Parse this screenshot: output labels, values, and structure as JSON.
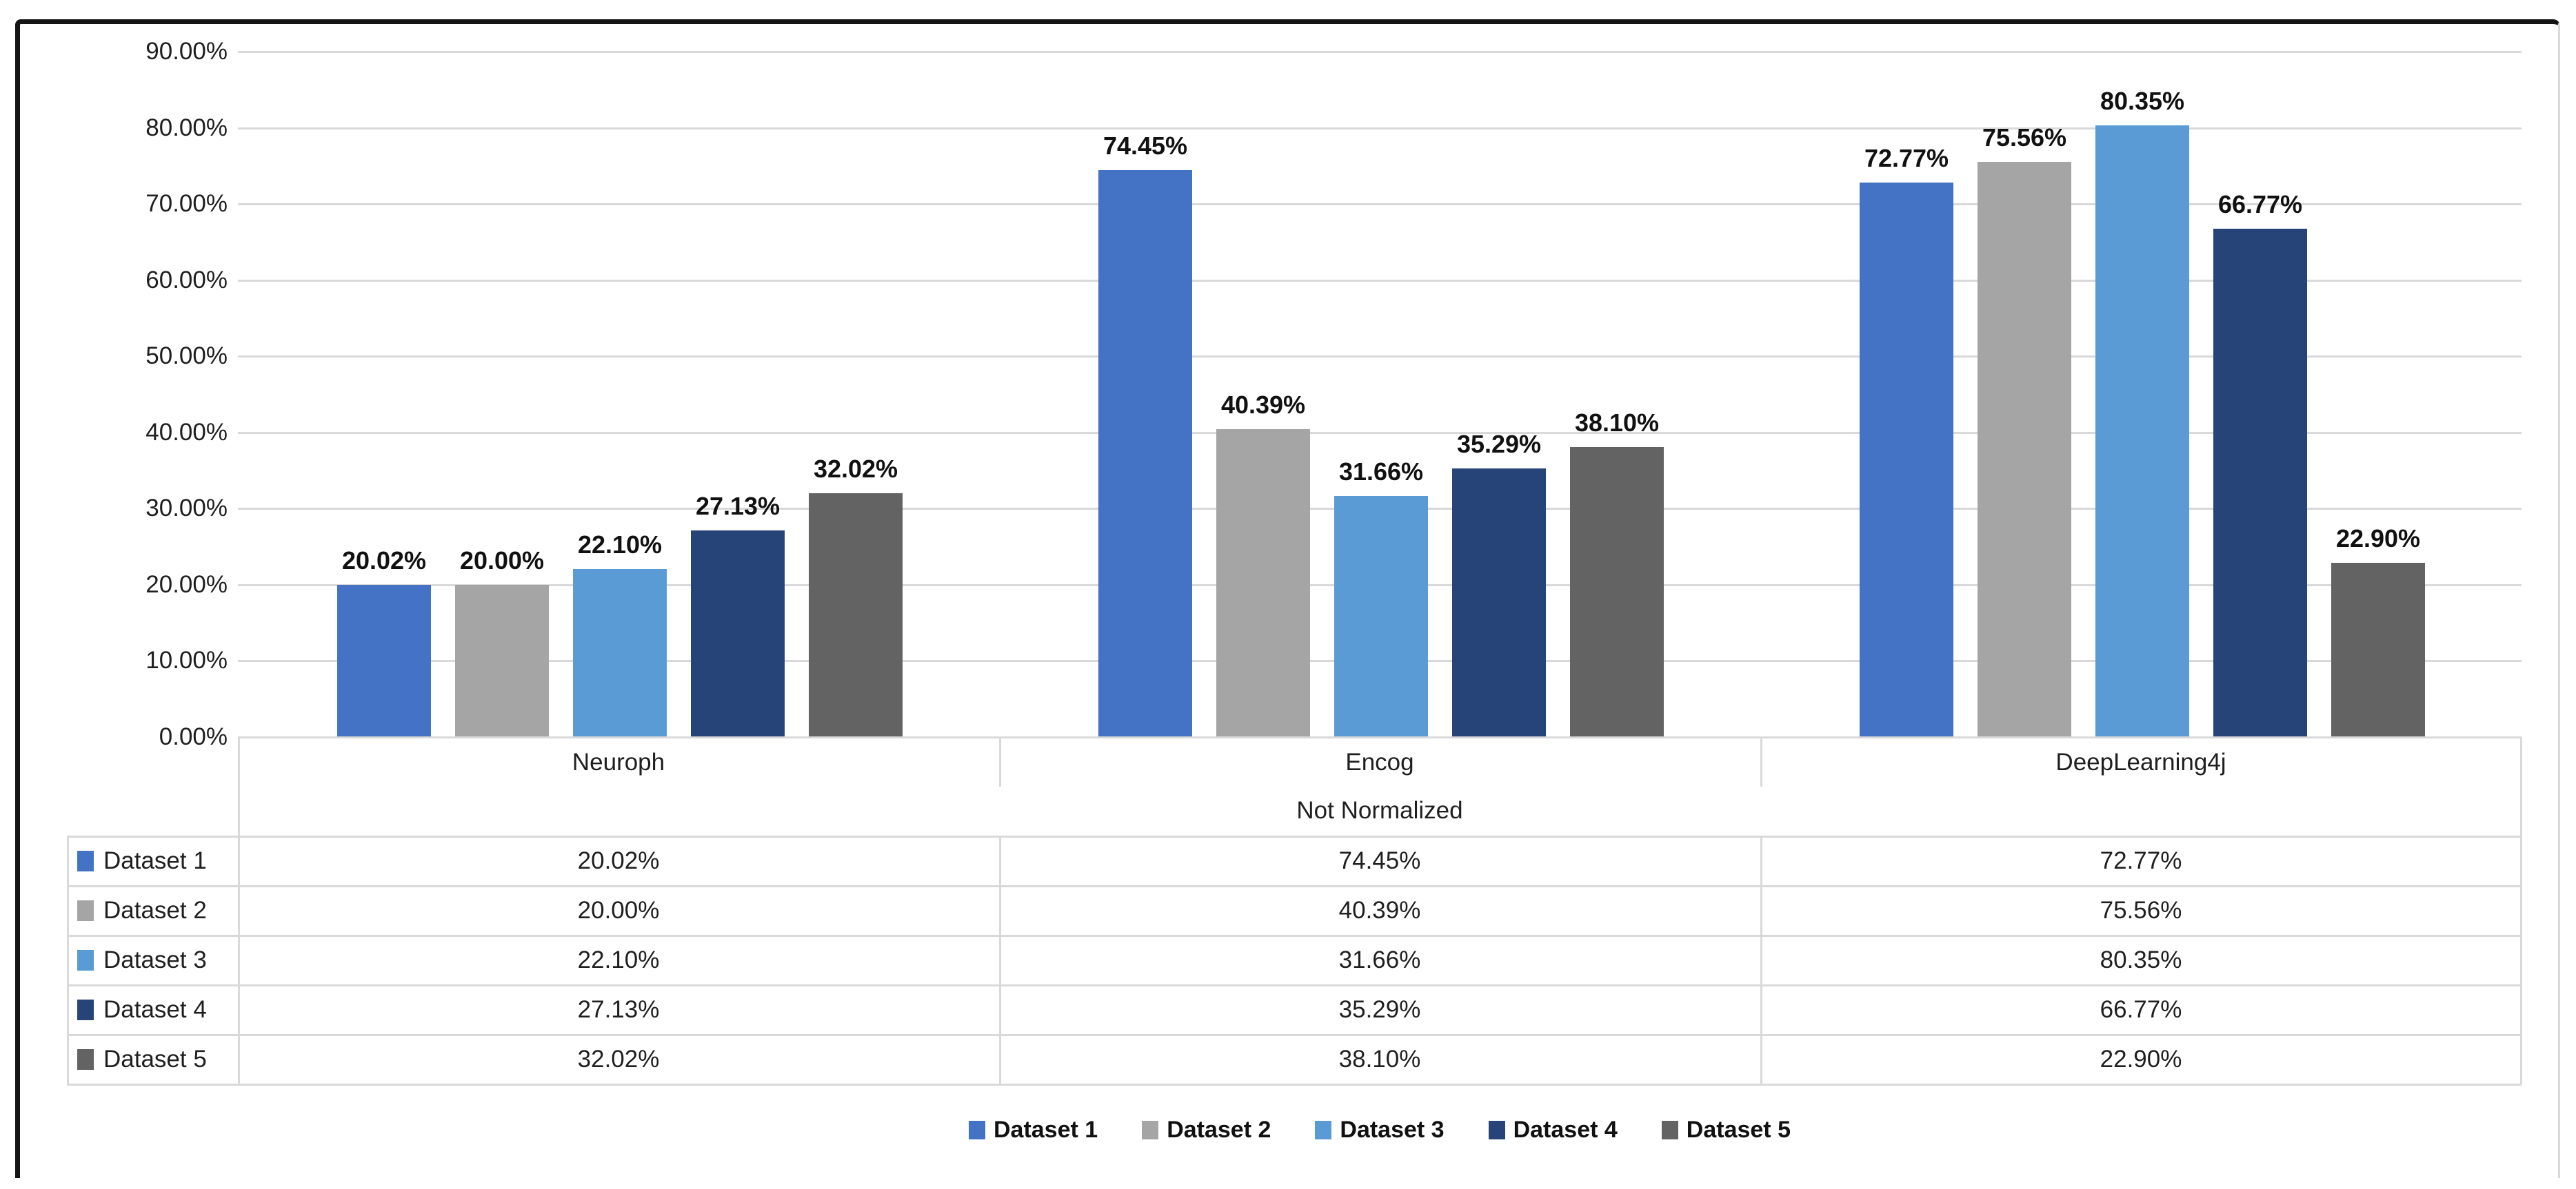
{
  "chart_data": {
    "type": "bar",
    "title": "",
    "categories": [
      "Neuroph",
      "Encog",
      "DeepLearning4j"
    ],
    "axis_group_label": "Not Normalized",
    "y_axis": {
      "min": 0,
      "max": 90,
      "step": 10,
      "tick_labels": [
        "0.00%",
        "10.00%",
        "20.00%",
        "30.00%",
        "40.00%",
        "50.00%",
        "60.00%",
        "70.00%",
        "80.00%",
        "90.00%"
      ]
    },
    "grid": true,
    "series": [
      {
        "name": "Dataset 1",
        "color": "#4472C4",
        "values": [
          20.02,
          74.45,
          72.77
        ],
        "labels": [
          "20.02%",
          "74.45%",
          "72.77%"
        ]
      },
      {
        "name": "Dataset 2",
        "color": "#A5A5A5",
        "values": [
          20.0,
          40.39,
          75.56
        ],
        "labels": [
          "20.00%",
          "40.39%",
          "75.56%"
        ]
      },
      {
        "name": "Dataset 3",
        "color": "#5B9BD5",
        "values": [
          22.1,
          31.66,
          80.35
        ],
        "labels": [
          "22.10%",
          "31.66%",
          "80.35%"
        ]
      },
      {
        "name": "Dataset 4",
        "color": "#264478",
        "values": [
          27.13,
          35.29,
          66.77
        ],
        "labels": [
          "27.13%",
          "35.29%",
          "66.77%"
        ]
      },
      {
        "name": "Dataset 5",
        "color": "#636363",
        "values": [
          32.02,
          38.1,
          22.9
        ],
        "labels": [
          "32.02%",
          "38.10%",
          "22.90%"
        ]
      }
    ],
    "legend": {
      "position": "bottom",
      "entries": [
        "Dataset 1",
        "Dataset 2",
        "Dataset 3",
        "Dataset 4",
        "Dataset 5"
      ]
    },
    "data_table": {
      "shown": true,
      "row_header_swatches": true,
      "rows": [
        {
          "label": "Dataset 1",
          "cells": [
            "20.02%",
            "74.45%",
            "72.77%"
          ]
        },
        {
          "label": "Dataset 2",
          "cells": [
            "20.00%",
            "40.39%",
            "75.56%"
          ]
        },
        {
          "label": "Dataset 3",
          "cells": [
            "22.10%",
            "31.66%",
            "80.35%"
          ]
        },
        {
          "label": "Dataset 4",
          "cells": [
            "27.13%",
            "35.29%",
            "66.77%"
          ]
        },
        {
          "label": "Dataset 5",
          "cells": [
            "32.02%",
            "38.10%",
            "22.90%"
          ]
        }
      ]
    }
  }
}
